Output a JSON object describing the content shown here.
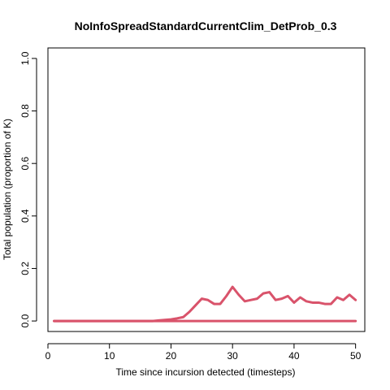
{
  "chart_data": {
    "type": "line",
    "title": "NoInfoSpreadStandardCurrentClim_DetProb_0.3",
    "xlabel": "Time since incursion detected (timesteps)",
    "ylabel": "Total population (proportion of K)",
    "xlim": [
      0,
      51.5
    ],
    "ylim": [
      -0.04,
      1.04
    ],
    "xticks": [
      0,
      10,
      20,
      30,
      40,
      50
    ],
    "yticks": [
      0.0,
      0.2,
      0.4,
      0.6,
      0.8,
      1.0
    ],
    "ytick_labels": [
      "0.0",
      "0.2",
      "0.4",
      "0.6",
      "0.8",
      "1.0"
    ],
    "grid": false,
    "legend": "none",
    "series": [
      {
        "color": "#d9536b",
        "x": [
          1,
          2,
          3,
          4,
          5,
          6,
          7,
          8,
          9,
          10,
          11,
          12,
          13,
          14,
          15,
          16,
          17,
          18,
          19,
          20,
          21,
          22,
          23,
          24,
          25,
          26,
          27,
          28,
          29,
          30,
          31,
          32,
          33,
          34,
          35,
          36,
          37,
          38,
          39,
          40,
          41,
          42,
          43,
          44,
          45,
          46,
          47,
          48,
          49,
          50
        ],
        "y": [
          0,
          0,
          0,
          0,
          0,
          0,
          0,
          0,
          0,
          0,
          0,
          0,
          0,
          0,
          0,
          0,
          0,
          0.002,
          0.004,
          0.006,
          0.01,
          0.015,
          0.035,
          0.06,
          0.085,
          0.08,
          0.065,
          0.065,
          0.095,
          0.13,
          0.1,
          0.075,
          0.08,
          0.085,
          0.105,
          0.11,
          0.08,
          0.085,
          0.095,
          0.07,
          0.09,
          0.075,
          0.07,
          0.07,
          0.065,
          0.065,
          0.09,
          0.08,
          0.1,
          0.08
        ]
      },
      {
        "color": "#d9536b",
        "x": [
          1,
          2,
          3,
          4,
          5,
          6,
          7,
          8,
          9,
          10,
          11,
          12,
          13,
          14,
          15,
          16,
          17,
          18,
          19,
          20,
          21,
          22,
          23,
          24,
          25,
          26,
          27,
          28,
          29,
          30,
          31,
          32,
          33,
          34,
          35,
          36,
          37,
          38,
          39,
          40,
          41,
          42,
          43,
          44,
          45,
          46,
          47,
          48,
          49,
          50
        ],
        "y": [
          0,
          0,
          0,
          0,
          0,
          0,
          0,
          0,
          0,
          0,
          0,
          0,
          0,
          0,
          0,
          0,
          0,
          0,
          0,
          0,
          0,
          0,
          0,
          0,
          0,
          0,
          0,
          0,
          0,
          0,
          0,
          0,
          0,
          0,
          0,
          0,
          0,
          0,
          0,
          0,
          0,
          0,
          0,
          0,
          0,
          0,
          0,
          0,
          0,
          0
        ]
      }
    ]
  }
}
